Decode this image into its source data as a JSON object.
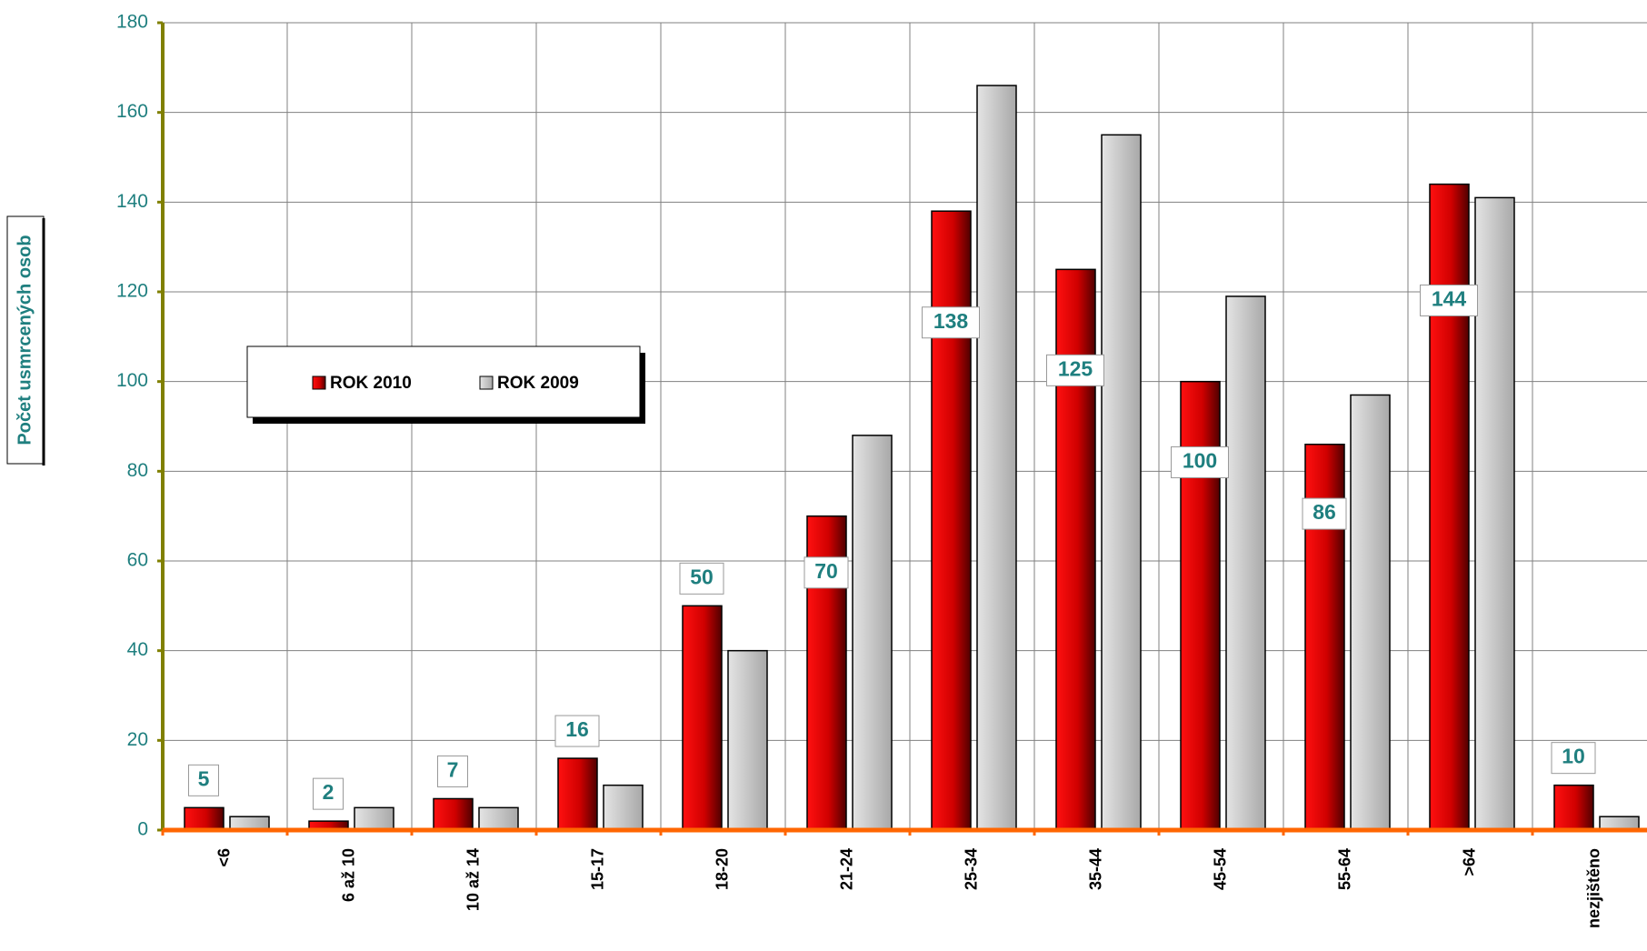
{
  "chart_data": {
    "type": "bar",
    "y_label": "Počet usmrcených osob",
    "categories": [
      "<6",
      "6 až 10",
      "10 až 14",
      "15-17",
      "18-20",
      "21-24",
      "25-34",
      "35-44",
      "45-54",
      "55-64",
      ">64",
      "nezjištěno"
    ],
    "series": [
      {
        "name": "ROK 2010",
        "color": "#e00000",
        "values": [
          5,
          2,
          7,
          16,
          50,
          70,
          138,
          125,
          100,
          86,
          144,
          10
        ]
      },
      {
        "name": "ROK 2009",
        "color": "#c8c8c8",
        "values": [
          3,
          5,
          5,
          10,
          40,
          88,
          166,
          155,
          119,
          97,
          141,
          3
        ]
      }
    ],
    "data_labels_series": 0,
    "ylim": [
      0,
      180
    ],
    "yticks": [
      0,
      20,
      40,
      60,
      80,
      100,
      120,
      140,
      160,
      180
    ],
    "grid": true
  }
}
